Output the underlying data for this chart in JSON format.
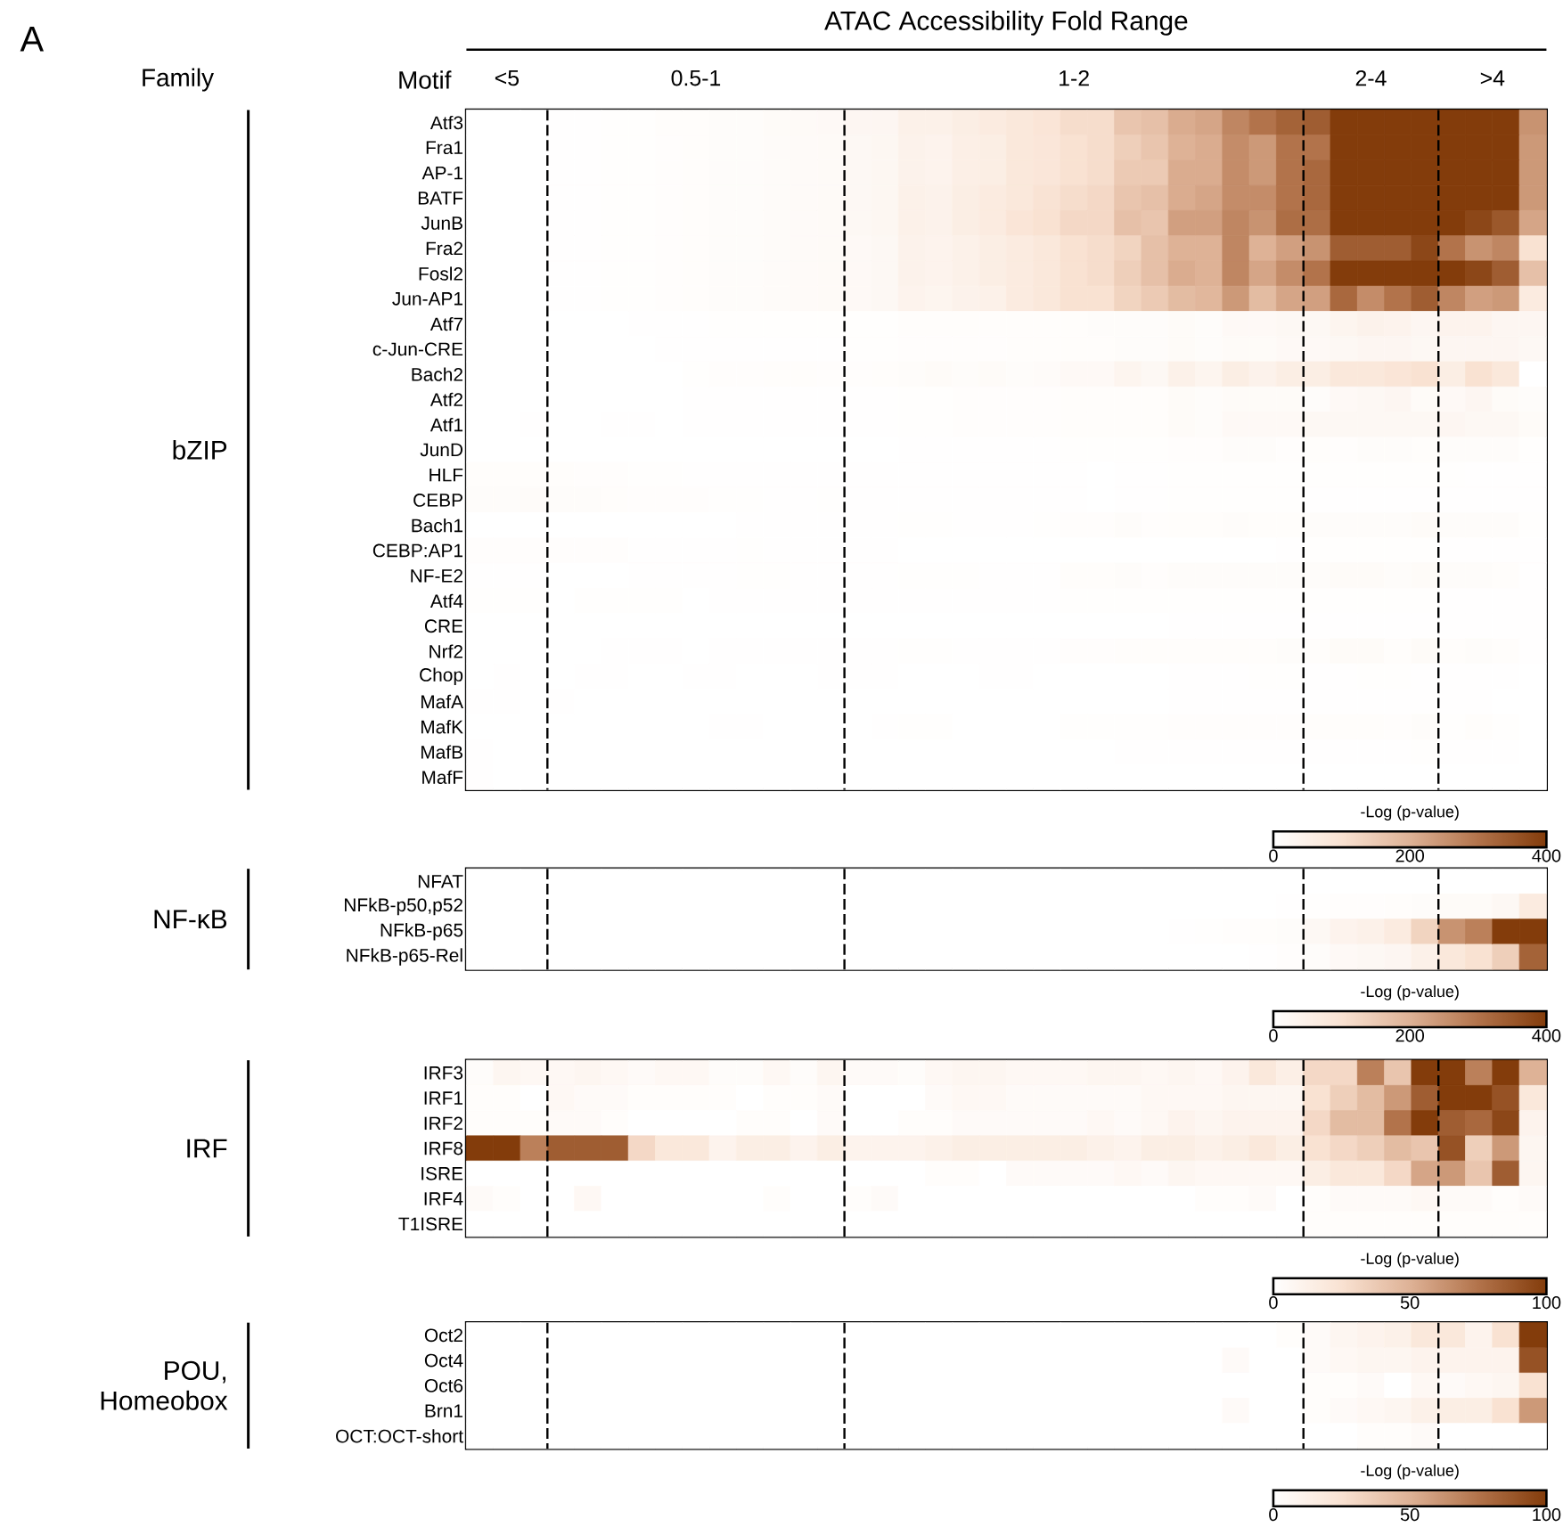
{
  "chart_data": [
    {
      "type": "heatmap",
      "title": "ATAC Accessibility Fold Range",
      "ylabel": "bZIP",
      "clabel": "-Log (p-value)",
      "clim": [
        0,
        400
      ],
      "cticks": [
        0,
        200,
        400
      ],
      "annotations": [
        "A",
        "Family",
        "Motif",
        "<5",
        "0.5-1",
        "1-2",
        "2-4",
        ">4"
      ],
      "categories": [
        null,
        null,
        null,
        null,
        null,
        null,
        null,
        null,
        null,
        null,
        null,
        null,
        null,
        null,
        null,
        null,
        null,
        null,
        null,
        null,
        null,
        null,
        null,
        null,
        null,
        null,
        null,
        null,
        null,
        null,
        null,
        null,
        null,
        null,
        null,
        null,
        null,
        null,
        null,
        null
      ],
      "y_categories": [
        "Atf3",
        "Fra1",
        "AP-1",
        "BATF",
        "JunB",
        "Fra2",
        "Fosl2",
        "Jun-AP1",
        "Atf7",
        "c-Jun-CRE",
        "Bach2",
        "Atf2",
        "Atf1",
        "JunD",
        "HLF",
        "CEBP",
        "Bach1",
        "CEBP:AP1",
        "NF-E2",
        "Atf4",
        "CRE",
        "Nrf2",
        "Chop",
        "MafA",
        "MafK",
        "MafB",
        "MafF"
      ],
      "cells": [
        [
          0,
          0,
          0,
          2,
          2,
          5,
          5,
          8,
          8,
          12,
          12,
          15,
          18,
          20,
          30,
          30,
          50,
          50,
          60,
          70,
          80,
          90,
          110,
          110,
          160,
          170,
          210,
          220,
          270,
          300,
          330,
          340,
          400,
          400,
          400,
          400,
          400,
          400,
          400,
          250
        ],
        [
          0,
          0,
          0,
          2,
          2,
          4,
          5,
          6,
          8,
          10,
          12,
          14,
          16,
          18,
          25,
          28,
          45,
          40,
          55,
          60,
          80,
          85,
          100,
          110,
          140,
          160,
          200,
          210,
          260,
          240,
          300,
          300,
          400,
          400,
          400,
          400,
          400,
          400,
          400,
          240
        ],
        [
          0,
          0,
          0,
          2,
          2,
          4,
          5,
          6,
          8,
          10,
          12,
          14,
          16,
          18,
          25,
          28,
          45,
          40,
          55,
          60,
          80,
          85,
          100,
          110,
          150,
          150,
          210,
          210,
          260,
          240,
          300,
          320,
          400,
          400,
          400,
          400,
          400,
          400,
          400,
          240
        ],
        [
          0,
          0,
          0,
          2,
          2,
          4,
          5,
          6,
          8,
          10,
          12,
          14,
          16,
          18,
          25,
          28,
          50,
          45,
          60,
          70,
          80,
          95,
          110,
          120,
          160,
          170,
          210,
          220,
          260,
          260,
          300,
          320,
          400,
          400,
          400,
          400,
          400,
          400,
          400,
          240
        ],
        [
          0,
          0,
          0,
          2,
          2,
          4,
          5,
          6,
          8,
          10,
          12,
          14,
          16,
          18,
          25,
          28,
          50,
          45,
          60,
          70,
          90,
          100,
          120,
          120,
          170,
          160,
          230,
          230,
          270,
          250,
          310,
          310,
          400,
          400,
          400,
          400,
          400,
          380,
          350,
          220
        ],
        [
          0,
          0,
          0,
          2,
          2,
          4,
          5,
          6,
          8,
          10,
          12,
          14,
          16,
          18,
          20,
          25,
          45,
          40,
          50,
          60,
          70,
          80,
          100,
          110,
          130,
          170,
          200,
          200,
          270,
          200,
          230,
          250,
          340,
          340,
          340,
          380,
          300,
          250,
          270,
          100
        ],
        [
          0,
          0,
          0,
          2,
          2,
          4,
          5,
          6,
          8,
          10,
          12,
          14,
          16,
          18,
          20,
          25,
          45,
          40,
          50,
          60,
          70,
          80,
          100,
          110,
          140,
          170,
          210,
          200,
          270,
          220,
          260,
          300,
          400,
          400,
          400,
          400,
          400,
          380,
          340,
          170
        ],
        [
          0,
          0,
          0,
          2,
          2,
          4,
          5,
          6,
          8,
          10,
          12,
          14,
          16,
          18,
          20,
          25,
          40,
          35,
          45,
          50,
          70,
          80,
          100,
          100,
          130,
          150,
          180,
          190,
          240,
          180,
          220,
          230,
          320,
          260,
          300,
          340,
          270,
          230,
          240,
          70
        ],
        [
          0,
          0,
          0,
          0,
          0,
          0,
          2,
          2,
          2,
          4,
          4,
          4,
          4,
          4,
          4,
          4,
          8,
          8,
          8,
          8,
          8,
          8,
          8,
          10,
          10,
          12,
          15,
          12,
          20,
          20,
          25,
          25,
          35,
          45,
          40,
          30,
          40,
          40,
          30,
          30
        ],
        [
          0,
          0,
          0,
          0,
          0,
          0,
          0,
          2,
          2,
          2,
          2,
          2,
          2,
          2,
          4,
          4,
          6,
          6,
          6,
          6,
          8,
          8,
          8,
          8,
          10,
          10,
          15,
          10,
          15,
          15,
          20,
          20,
          25,
          30,
          30,
          25,
          30,
          30,
          30,
          25
        ],
        [
          0,
          0,
          0,
          0,
          0,
          0,
          0,
          0,
          4,
          6,
          6,
          8,
          8,
          6,
          6,
          8,
          10,
          15,
          10,
          15,
          12,
          14,
          20,
          20,
          35,
          25,
          50,
          35,
          60,
          45,
          60,
          60,
          80,
          80,
          90,
          100,
          60,
          100,
          80,
          0
        ],
        [
          0,
          0,
          0,
          0,
          0,
          0,
          0,
          0,
          2,
          2,
          2,
          2,
          2,
          2,
          2,
          2,
          4,
          4,
          6,
          6,
          6,
          6,
          8,
          8,
          8,
          8,
          15,
          10,
          15,
          15,
          15,
          10,
          20,
          25,
          30,
          15,
          20,
          30,
          15,
          10
        ],
        [
          0,
          0,
          2,
          0,
          0,
          2,
          2,
          0,
          2,
          2,
          2,
          2,
          2,
          2,
          2,
          2,
          4,
          4,
          6,
          6,
          6,
          6,
          8,
          8,
          8,
          8,
          15,
          10,
          20,
          20,
          20,
          25,
          25,
          25,
          25,
          25,
          30,
          25,
          25,
          15
        ],
        [
          0,
          0,
          0,
          0,
          0,
          0,
          0,
          0,
          0,
          0,
          0,
          0,
          0,
          0,
          0,
          0,
          2,
          2,
          2,
          2,
          2,
          2,
          4,
          4,
          4,
          4,
          6,
          6,
          10,
          10,
          6,
          8,
          6,
          10,
          10,
          8,
          10,
          10,
          10,
          4
        ],
        [
          8,
          8,
          8,
          8,
          6,
          6,
          4,
          4,
          2,
          2,
          2,
          2,
          2,
          2,
          2,
          2,
          2,
          2,
          2,
          2,
          2,
          2,
          2,
          0,
          2,
          2,
          4,
          4,
          4,
          4,
          4,
          4,
          4,
          4,
          4,
          4,
          4,
          2,
          2,
          2
        ],
        [
          10,
          10,
          14,
          10,
          10,
          8,
          6,
          6,
          6,
          4,
          4,
          2,
          2,
          4,
          2,
          2,
          2,
          2,
          2,
          2,
          2,
          2,
          2,
          0,
          2,
          2,
          4,
          4,
          4,
          4,
          4,
          2,
          2,
          2,
          2,
          2,
          2,
          2,
          2,
          2
        ],
        [
          0,
          0,
          0,
          0,
          0,
          0,
          0,
          0,
          0,
          0,
          2,
          2,
          2,
          2,
          2,
          2,
          4,
          4,
          2,
          2,
          2,
          4,
          6,
          6,
          10,
          6,
          8,
          8,
          12,
          8,
          8,
          10,
          10,
          10,
          10,
          15,
          10,
          10,
          10,
          4
        ],
        [
          6,
          6,
          6,
          6,
          6,
          6,
          2,
          2,
          2,
          2,
          4,
          2,
          2,
          2,
          2,
          2,
          0,
          0,
          0,
          0,
          0,
          0,
          0,
          0,
          0,
          0,
          0,
          0,
          0,
          0,
          2,
          4,
          4,
          4,
          4,
          4,
          2,
          2,
          2,
          2
        ],
        [
          2,
          2,
          2,
          0,
          0,
          0,
          2,
          2,
          2,
          2,
          4,
          4,
          2,
          2,
          2,
          2,
          4,
          4,
          4,
          2,
          2,
          2,
          8,
          8,
          12,
          6,
          12,
          10,
          10,
          10,
          10,
          10,
          15,
          15,
          10,
          15,
          10,
          10,
          8,
          2
        ],
        [
          4,
          4,
          4,
          0,
          4,
          4,
          4,
          4,
          0,
          2,
          2,
          2,
          2,
          2,
          2,
          2,
          2,
          2,
          2,
          2,
          2,
          2,
          4,
          4,
          4,
          4,
          4,
          4,
          4,
          4,
          4,
          4,
          4,
          4,
          4,
          4,
          2,
          2,
          2,
          2
        ],
        [
          0,
          0,
          0,
          0,
          0,
          0,
          0,
          0,
          0,
          0,
          0,
          0,
          0,
          0,
          0,
          0,
          0,
          0,
          0,
          0,
          0,
          0,
          0,
          0,
          0,
          0,
          2,
          2,
          2,
          2,
          2,
          2,
          2,
          2,
          2,
          2,
          2,
          2,
          2,
          2
        ],
        [
          0,
          0,
          0,
          0,
          0,
          2,
          2,
          2,
          0,
          2,
          2,
          2,
          2,
          2,
          2,
          2,
          4,
          4,
          2,
          2,
          2,
          2,
          6,
          6,
          8,
          8,
          8,
          8,
          8,
          8,
          12,
          8,
          15,
          15,
          8,
          15,
          8,
          10,
          8,
          2
        ],
        [
          0,
          2,
          0,
          0,
          2,
          2,
          0,
          0,
          2,
          2,
          0,
          0,
          0,
          2,
          2,
          2,
          0,
          0,
          0,
          2,
          2,
          0,
          0,
          0,
          0,
          0,
          2,
          2,
          2,
          4,
          4,
          2,
          2,
          4,
          4,
          2,
          2,
          2,
          2,
          0
        ],
        [
          2,
          2,
          0,
          2,
          0,
          0,
          0,
          0,
          0,
          0,
          0,
          0,
          0,
          0,
          0,
          0,
          0,
          0,
          0,
          0,
          0,
          0,
          0,
          0,
          0,
          0,
          2,
          2,
          2,
          2,
          2,
          2,
          2,
          2,
          2,
          2,
          2,
          2,
          0,
          0
        ],
        [
          0,
          0,
          0,
          0,
          0,
          0,
          0,
          0,
          0,
          2,
          2,
          0,
          0,
          0,
          0,
          2,
          4,
          4,
          0,
          0,
          0,
          0,
          4,
          4,
          4,
          4,
          6,
          6,
          6,
          6,
          6,
          8,
          8,
          8,
          6,
          10,
          4,
          8,
          4,
          0
        ],
        [
          2,
          0,
          0,
          0,
          0,
          0,
          0,
          0,
          0,
          0,
          0,
          0,
          0,
          0,
          0,
          0,
          0,
          0,
          0,
          0,
          0,
          0,
          0,
          0,
          2,
          2,
          2,
          2,
          2,
          2,
          2,
          2,
          2,
          2,
          2,
          4,
          2,
          2,
          2,
          0
        ],
        [
          2,
          0,
          0,
          0,
          0,
          0,
          0,
          0,
          0,
          0,
          0,
          0,
          0,
          0,
          0,
          0,
          0,
          0,
          0,
          0,
          0,
          0,
          0,
          0,
          0,
          0,
          0,
          0,
          0,
          0,
          0,
          0,
          0,
          0,
          0,
          0,
          0,
          0,
          0,
          0
        ]
      ]
    },
    {
      "type": "heatmap",
      "ylabel": "NF-κB",
      "clabel": "-Log (p-value)",
      "clim": [
        0,
        400
      ],
      "cticks": [
        0,
        200,
        400
      ],
      "categories": [
        null,
        null,
        null,
        null,
        null,
        null,
        null,
        null,
        null,
        null,
        null,
        null,
        null,
        null,
        null,
        null,
        null,
        null,
        null,
        null,
        null,
        null,
        null,
        null,
        null,
        null,
        null,
        null,
        null,
        null,
        null,
        null,
        null,
        null,
        null,
        null,
        null,
        null,
        null,
        null
      ],
      "y_categories": [
        "NFAT",
        "NFkB-p50,p52",
        "NFkB-p65",
        "NFkB-p65-Rel"
      ],
      "cells": [
        [
          0,
          0,
          0,
          0,
          0,
          0,
          0,
          0,
          0,
          0,
          0,
          0,
          0,
          0,
          0,
          0,
          0,
          0,
          0,
          0,
          0,
          0,
          0,
          0,
          0,
          0,
          0,
          0,
          0,
          0,
          0,
          0,
          0,
          0,
          0,
          0,
          0,
          0,
          0,
          0
        ],
        [
          0,
          0,
          0,
          0,
          0,
          0,
          0,
          0,
          0,
          0,
          0,
          0,
          0,
          0,
          0,
          0,
          0,
          0,
          0,
          0,
          0,
          0,
          0,
          0,
          0,
          0,
          0,
          0,
          0,
          0,
          2,
          4,
          6,
          6,
          8,
          10,
          15,
          15,
          25,
          70
        ],
        [
          0,
          0,
          0,
          0,
          0,
          0,
          0,
          0,
          0,
          0,
          0,
          0,
          0,
          0,
          0,
          0,
          0,
          0,
          0,
          0,
          0,
          0,
          0,
          0,
          0,
          0,
          2,
          4,
          6,
          8,
          12,
          25,
          40,
          50,
          70,
          130,
          250,
          280,
          400,
          400
        ],
        [
          0,
          0,
          0,
          0,
          0,
          0,
          0,
          0,
          0,
          0,
          0,
          0,
          0,
          0,
          0,
          0,
          0,
          0,
          0,
          0,
          0,
          0,
          0,
          0,
          0,
          0,
          0,
          0,
          0,
          2,
          6,
          10,
          20,
          25,
          30,
          50,
          80,
          100,
          140,
          330
        ]
      ]
    },
    {
      "type": "heatmap",
      "ylabel": "IRF",
      "clabel": "-Log (p-value)",
      "clim": [
        0,
        100
      ],
      "cticks": [
        0,
        50,
        100
      ],
      "categories": [
        null,
        null,
        null,
        null,
        null,
        null,
        null,
        null,
        null,
        null,
        null,
        null,
        null,
        null,
        null,
        null,
        null,
        null,
        null,
        null,
        null,
        null,
        null,
        null,
        null,
        null,
        null,
        null,
        null,
        null,
        null,
        null,
        null,
        null,
        null,
        null,
        null,
        null,
        null,
        null
      ],
      "y_categories": [
        "IRF3",
        "IRF1",
        "IRF2",
        "IRF8",
        "ISRE",
        "IRF4",
        "T1ISRE"
      ],
      "cells": [
        [
          3,
          8,
          6,
          6,
          8,
          6,
          4,
          6,
          6,
          3,
          3,
          6,
          3,
          8,
          4,
          4,
          3,
          6,
          8,
          8,
          6,
          6,
          6,
          8,
          8,
          6,
          8,
          6,
          10,
          20,
          14,
          30,
          30,
          70,
          40,
          100,
          100,
          70,
          100,
          50
        ],
        [
          2,
          2,
          0,
          6,
          4,
          4,
          2,
          2,
          2,
          2,
          0,
          2,
          2,
          4,
          0,
          0,
          0,
          4,
          6,
          6,
          4,
          4,
          4,
          4,
          4,
          6,
          6,
          6,
          8,
          8,
          8,
          25,
          35,
          45,
          60,
          85,
          100,
          100,
          90,
          20
        ],
        [
          2,
          2,
          2,
          4,
          4,
          2,
          0,
          0,
          0,
          0,
          2,
          2,
          0,
          4,
          0,
          0,
          2,
          2,
          4,
          4,
          4,
          4,
          4,
          6,
          4,
          6,
          10,
          8,
          10,
          10,
          10,
          30,
          45,
          45,
          75,
          100,
          85,
          80,
          95,
          10
        ],
        [
          100,
          100,
          70,
          85,
          85,
          85,
          30,
          20,
          20,
          10,
          15,
          15,
          10,
          15,
          10,
          10,
          10,
          12,
          15,
          15,
          15,
          15,
          15,
          12,
          10,
          15,
          15,
          12,
          15,
          20,
          15,
          25,
          30,
          35,
          45,
          40,
          90,
          35,
          60,
          8
        ],
        [
          0,
          0,
          0,
          0,
          0,
          0,
          0,
          0,
          0,
          0,
          0,
          0,
          0,
          0,
          0,
          0,
          0,
          2,
          2,
          0,
          4,
          4,
          4,
          4,
          6,
          4,
          8,
          6,
          6,
          6,
          6,
          15,
          20,
          20,
          30,
          55,
          60,
          40,
          85,
          8
        ],
        [
          4,
          2,
          0,
          0,
          6,
          0,
          0,
          0,
          0,
          0,
          0,
          2,
          0,
          0,
          2,
          4,
          0,
          0,
          0,
          0,
          0,
          0,
          0,
          0,
          0,
          0,
          0,
          2,
          2,
          4,
          0,
          2,
          4,
          4,
          4,
          6,
          4,
          4,
          2,
          4
        ],
        [
          0,
          0,
          0,
          0,
          0,
          0,
          0,
          0,
          0,
          0,
          0,
          0,
          0,
          0,
          0,
          0,
          0,
          0,
          0,
          0,
          0,
          0,
          0,
          0,
          0,
          0,
          0,
          0,
          0,
          0,
          0,
          2,
          2,
          2,
          2,
          2,
          2,
          2,
          2,
          2
        ]
      ]
    },
    {
      "type": "heatmap",
      "ylabel": "POU, Homeobox",
      "clabel": "-Log (p-value)",
      "clim": [
        0,
        100
      ],
      "cticks": [
        0,
        50,
        100
      ],
      "categories": [
        null,
        null,
        null,
        null,
        null,
        null,
        null,
        null,
        null,
        null,
        null,
        null,
        null,
        null,
        null,
        null,
        null,
        null,
        null,
        null,
        null,
        null,
        null,
        null,
        null,
        null,
        null,
        null,
        null,
        null,
        null,
        null,
        null,
        null,
        null,
        null,
        null,
        null,
        null,
        null
      ],
      "y_categories": [
        "Oct2",
        "Oct4",
        "Oct6",
        "Brn1",
        "OCT:OCT-short"
      ],
      "cells": [
        [
          0,
          0,
          0,
          0,
          0,
          0,
          0,
          0,
          0,
          0,
          0,
          0,
          0,
          0,
          0,
          0,
          0,
          0,
          0,
          0,
          0,
          0,
          0,
          0,
          0,
          0,
          0,
          0,
          0,
          0,
          2,
          4,
          8,
          10,
          12,
          20,
          20,
          10,
          25,
          100
        ],
        [
          0,
          0,
          0,
          0,
          0,
          0,
          0,
          0,
          0,
          0,
          0,
          0,
          0,
          0,
          0,
          0,
          0,
          0,
          0,
          0,
          0,
          0,
          0,
          0,
          0,
          0,
          0,
          0,
          4,
          0,
          0,
          4,
          6,
          8,
          8,
          10,
          10,
          10,
          10,
          90
        ],
        [
          0,
          0,
          0,
          0,
          0,
          0,
          0,
          0,
          0,
          0,
          0,
          0,
          0,
          0,
          0,
          0,
          0,
          0,
          0,
          0,
          0,
          0,
          0,
          0,
          0,
          0,
          0,
          0,
          0,
          0,
          0,
          2,
          2,
          4,
          0,
          6,
          4,
          6,
          8,
          25
        ],
        [
          0,
          0,
          0,
          0,
          0,
          0,
          0,
          0,
          0,
          0,
          0,
          0,
          0,
          0,
          0,
          0,
          0,
          0,
          0,
          0,
          0,
          0,
          0,
          0,
          0,
          0,
          0,
          0,
          4,
          0,
          0,
          2,
          4,
          6,
          8,
          12,
          15,
          15,
          25,
          60
        ],
        [
          0,
          0,
          0,
          0,
          0,
          0,
          0,
          0,
          0,
          0,
          0,
          0,
          0,
          0,
          0,
          0,
          0,
          0,
          0,
          0,
          0,
          0,
          0,
          0,
          0,
          0,
          0,
          0,
          0,
          0,
          0,
          0,
          0,
          2,
          2,
          4,
          0,
          0,
          0,
          0
        ]
      ]
    }
  ]
}
